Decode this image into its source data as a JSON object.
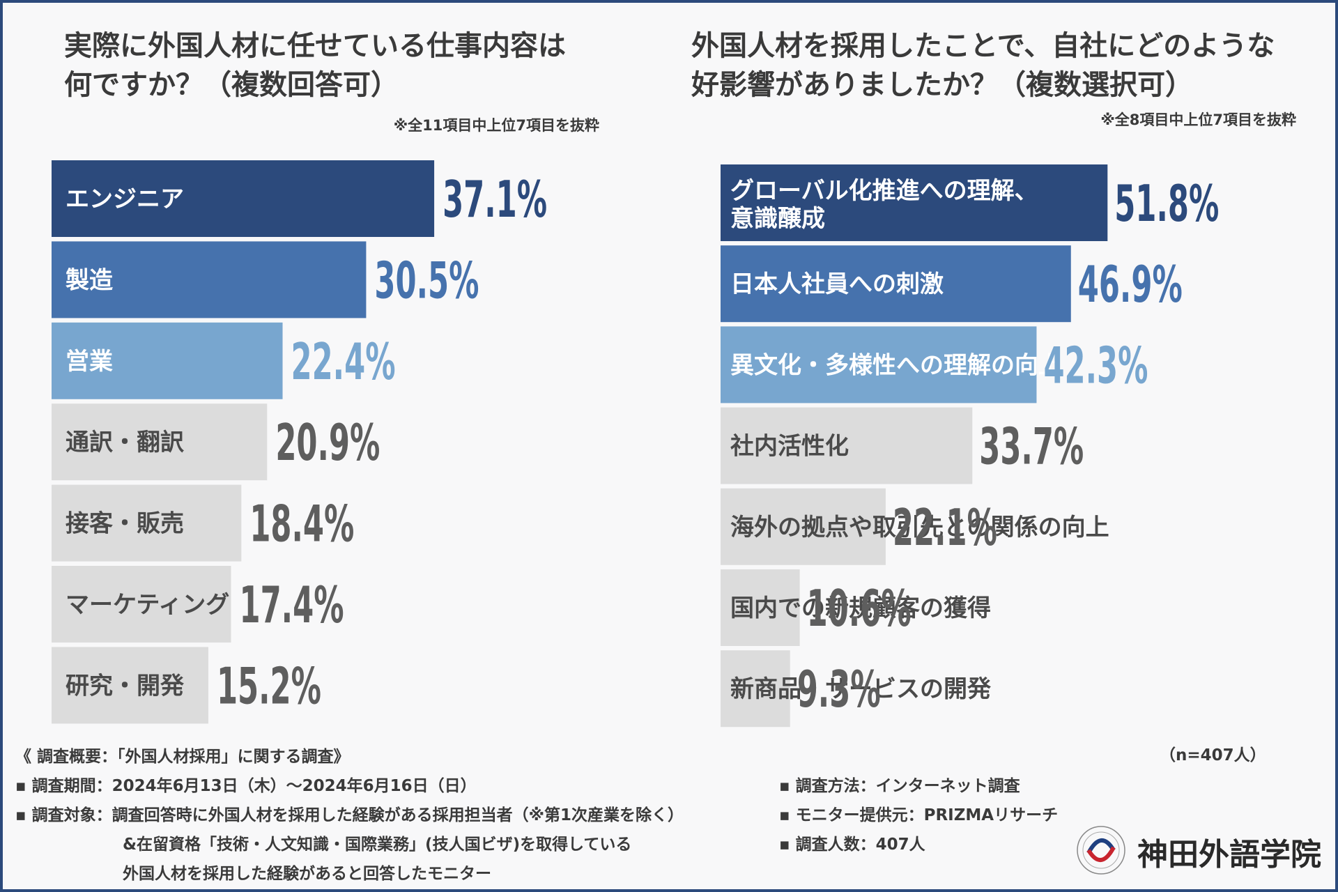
{
  "colors": {
    "dark_navy": "#2c4a7c",
    "mid_blue": "#4672ad",
    "light_blue": "#78a6cf",
    "gray_bar": "#dcdcdc",
    "gray_text": "#5e5e5e"
  },
  "left": {
    "title": "実際に外国人材に任せている仕事内容は\n何ですか？（複数回答可）",
    "note": "※全11項目中上位7項目を抜粋"
  },
  "right": {
    "title": "外国人材を採用したことで、自社にどのような\n好影響がありましたか？（複数選択可）",
    "note": "※全8項目中上位7項目を抜粋"
  },
  "chart_data": [
    {
      "type": "bar",
      "orientation": "horizontal",
      "title": "実際に外国人材に任せている仕事内容は何ですか？（複数回答可）",
      "unit": "%",
      "categories": [
        "エンジニア",
        "製造",
        "営業",
        "通訳・翻訳",
        "接客・販売",
        "マーケティング",
        "研究・開発"
      ],
      "values": [
        37.1,
        30.5,
        22.4,
        20.9,
        18.4,
        17.4,
        15.2
      ],
      "labels": [
        "37.1%",
        "30.5%",
        "22.4%",
        "20.9%",
        "18.4%",
        "17.4%",
        "15.2%"
      ],
      "highlight": [
        "dark",
        "mid",
        "light",
        "gray",
        "gray",
        "gray",
        "gray"
      ]
    },
    {
      "type": "bar",
      "orientation": "horizontal",
      "title": "外国人材を採用したことで、自社にどのような好影響がありましたか？（複数選択可）",
      "unit": "%",
      "categories": [
        "グローバル化推進への理解、\n意識醸成",
        "日本人社員への刺激",
        "異文化・多様性への理解の向上",
        "社内活性化",
        "海外の拠点や取引先との関係の向上",
        "国内での新規顧客の獲得",
        "新商品・サービスの開発"
      ],
      "values": [
        51.8,
        46.9,
        42.3,
        33.7,
        22.1,
        10.6,
        9.3
      ],
      "labels": [
        "51.8%",
        "46.9%",
        "42.3%",
        "33.7%",
        "22.1%",
        "10.6%",
        "9.3%"
      ],
      "highlight": [
        "dark",
        "mid",
        "light",
        "gray",
        "gray",
        "gray",
        "gray"
      ]
    }
  ],
  "footer": {
    "sample": "（n=407人）",
    "heading": "《 調査概要：「外国人材採用」に関する調査》",
    "period": "▪ 調査期間：2024年6月13日（木）～2024年6月16日（日）",
    "target_1": "▪ 調査対象：調査回答時に外国人材を採用した経験がある採用担当者（※第1次産業を除く）",
    "target_2": "&在留資格「技術・人文知識・国際業務」(技人国ビザ)を取得している",
    "target_3": "外国人材を採用した経験があると回答したモニター",
    "method": "▪ 調査方法：インターネット調査",
    "provider": "▪ モニター提供元：PRIZMAリサーチ",
    "count": "▪ 調査人数：407人"
  },
  "logo": {
    "name": "神田外語学院",
    "icon": "kanda-emblem-icon"
  }
}
